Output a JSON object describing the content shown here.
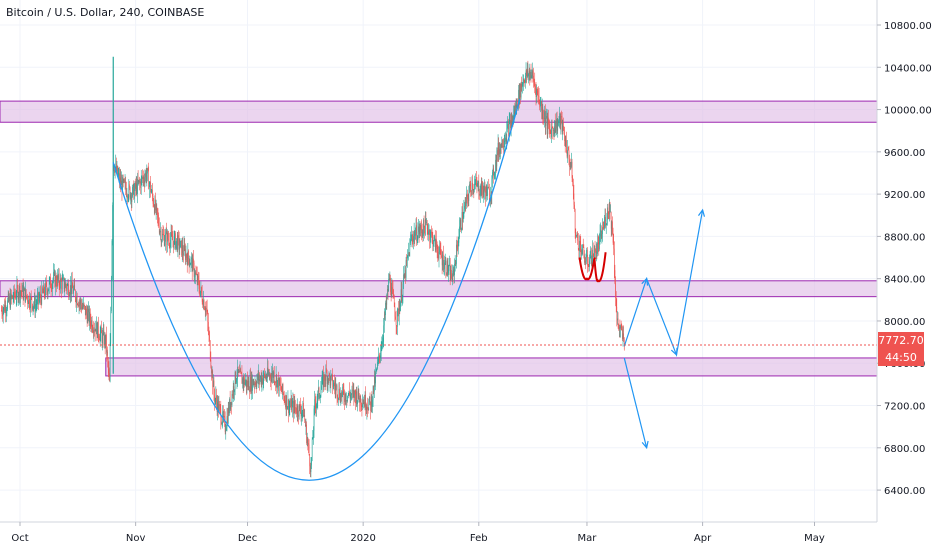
{
  "header": {
    "title": "Bitcoin / U.S. Dollar, 240, COINBASE"
  },
  "price_axis": {
    "current_price": "7772.70",
    "countdown": "44:50",
    "ticks": [
      "10800.00",
      "10400.00",
      "10000.00",
      "9600.00",
      "9200.00",
      "8800.00",
      "8400.00",
      "8000.00",
      "7600.00",
      "7200.00",
      "6800.00",
      "6400.00"
    ]
  },
  "colors": {
    "up_candle": "#26a69a",
    "down_candle": "#ef5350",
    "zone_fill": "#e1bee7",
    "zone_border": "#9c27b0",
    "drawing_line": "#2196f3",
    "pattern_line": "#d50000",
    "current_price": "#ef5350"
  },
  "chart_data": {
    "type": "candlestick",
    "title": "Bitcoin / U.S. Dollar, 240, COINBASE",
    "xlabel": "",
    "ylabel": "",
    "x_ticks": [
      "Oct",
      "Nov",
      "Dec",
      "2020",
      "Feb",
      "Mar",
      "Apr",
      "May"
    ],
    "ylim": [
      6200,
      11000
    ],
    "grid": true,
    "current_price": 7772.7,
    "price_path": [
      [
        "2019-09-26",
        8100
      ],
      [
        "2019-10-01",
        8300
      ],
      [
        "2019-10-05",
        8150
      ],
      [
        "2019-10-10",
        8400
      ],
      [
        "2019-10-15",
        8300
      ],
      [
        "2019-10-20",
        8000
      ],
      [
        "2019-10-24",
        7800
      ],
      [
        "2019-10-25",
        7400
      ],
      [
        "2019-10-26",
        9500
      ],
      [
        "2019-10-28",
        9300
      ],
      [
        "2019-10-31",
        9200
      ],
      [
        "2019-11-04",
        9400
      ],
      [
        "2019-11-08",
        8800
      ],
      [
        "2019-11-12",
        8750
      ],
      [
        "2019-11-16",
        8550
      ],
      [
        "2019-11-20",
        8100
      ],
      [
        "2019-11-22",
        7300
      ],
      [
        "2019-11-25",
        7000
      ],
      [
        "2019-11-28",
        7500
      ],
      [
        "2019-12-01",
        7400
      ],
      [
        "2019-12-04",
        7450
      ],
      [
        "2019-12-08",
        7500
      ],
      [
        "2019-12-12",
        7200
      ],
      [
        "2019-12-16",
        7150
      ],
      [
        "2019-12-18",
        6600
      ],
      [
        "2019-12-19",
        7200
      ],
      [
        "2019-12-22",
        7500
      ],
      [
        "2019-12-26",
        7300
      ],
      [
        "2019-12-30",
        7300
      ],
      [
        "2020-01-03",
        7200
      ],
      [
        "2020-01-06",
        7800
      ],
      [
        "2020-01-08",
        8400
      ],
      [
        "2020-01-10",
        8000
      ],
      [
        "2020-01-14",
        8800
      ],
      [
        "2020-01-18",
        8900
      ],
      [
        "2020-01-22",
        8600
      ],
      [
        "2020-01-25",
        8400
      ],
      [
        "2020-01-27",
        8900
      ],
      [
        "2020-01-30",
        9300
      ],
      [
        "2020-02-04",
        9200
      ],
      [
        "2020-02-06",
        9600
      ],
      [
        "2020-02-10",
        9900
      ],
      [
        "2020-02-13",
        10300
      ],
      [
        "2020-02-15",
        10350
      ],
      [
        "2020-02-18",
        10000
      ],
      [
        "2020-02-20",
        9800
      ],
      [
        "2020-02-23",
        9900
      ],
      [
        "2020-02-26",
        9400
      ],
      [
        "2020-02-27",
        8800
      ],
      [
        "2020-03-01",
        8550
      ],
      [
        "2020-03-04",
        8700
      ],
      [
        "2020-03-07",
        9100
      ],
      [
        "2020-03-08",
        8800
      ],
      [
        "2020-03-09",
        8000
      ],
      [
        "2020-03-11",
        7800
      ]
    ],
    "zones": [
      {
        "low": 9880,
        "high": 10080
      },
      {
        "low": 8230,
        "high": 8380
      },
      {
        "low": 7480,
        "high": 7650
      }
    ],
    "annotations": {
      "cup_curve": [
        [
          "2019-10-26",
          9500
        ],
        [
          "2019-12-20",
          6500
        ],
        [
          "2020-02-12",
          10100
        ]
      ],
      "projection_down": [
        [
          "2020-03-11",
          7650
        ],
        [
          "2020-03-17",
          6800
        ]
      ],
      "projection_up": [
        [
          "2020-03-11",
          7760
        ],
        [
          "2020-03-17",
          8400
        ],
        [
          "2020-03-25",
          7680
        ],
        [
          "2020-04-01",
          9050
        ]
      ],
      "pattern": [
        [
          "2020-02-28",
          8600
        ],
        [
          "2020-03-01",
          8400
        ],
        [
          "2020-03-03",
          8600
        ],
        [
          "2020-03-04",
          8380
        ],
        [
          "2020-03-06",
          8650
        ]
      ]
    }
  }
}
